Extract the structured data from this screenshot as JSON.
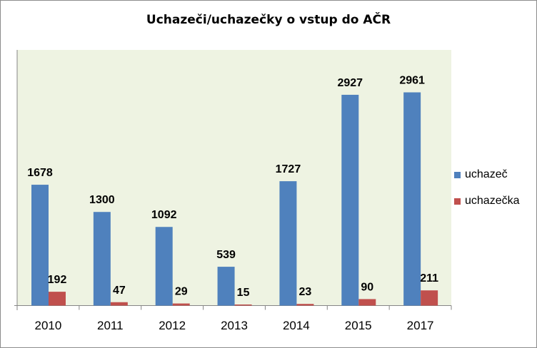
{
  "chart_data": {
    "type": "bar",
    "title": "Uchazeči/uchazečky o vstup do AČR",
    "categories": [
      "2010",
      "2011",
      "2012",
      "2013",
      "2014",
      "2015",
      "2017"
    ],
    "series": [
      {
        "name": "uchazeč",
        "color": "#4f81bd",
        "values": [
          1678,
          1300,
          1092,
          539,
          1727,
          2927,
          2961
        ]
      },
      {
        "name": "uchazečka",
        "color": "#c0504d",
        "values": [
          192,
          47,
          29,
          15,
          23,
          90,
          211
        ]
      }
    ],
    "ylim": [
      0,
      3000
    ],
    "plot_background": "#eef3e2",
    "legend_position": "right"
  }
}
